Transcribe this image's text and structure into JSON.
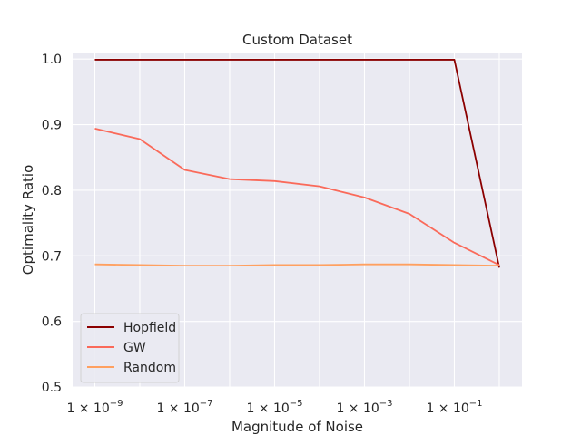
{
  "chart_data": {
    "type": "line",
    "title": "Custom Dataset",
    "xlabel": "Magnitude of Noise",
    "ylabel": "Optimality Ratio",
    "x_scale": "log",
    "x": [
      1e-09,
      1e-08,
      1e-07,
      1e-06,
      1e-05,
      0.0001,
      0.001,
      0.01,
      0.1,
      1
    ],
    "xlim": [
      3.2e-10,
      3.2
    ],
    "ylim": [
      0.5,
      1.01
    ],
    "x_ticks": [
      {
        "value": 1e-09,
        "base": "1 × 10",
        "exp": "−9"
      },
      {
        "value": 1e-07,
        "base": "1 × 10",
        "exp": "−7"
      },
      {
        "value": 1e-05,
        "base": "1 × 10",
        "exp": "−5"
      },
      {
        "value": 0.001,
        "base": "1 × 10",
        "exp": "−3"
      },
      {
        "value": 0.1,
        "base": "1 × 10",
        "exp": "−1"
      }
    ],
    "y_ticks": [
      "0.5",
      "0.6",
      "0.7",
      "0.8",
      "0.9",
      "1.0"
    ],
    "grid": true,
    "legend_position": "bottom-left",
    "series": [
      {
        "name": "Hopfield",
        "color": "#8b0000",
        "values": [
          0.999,
          0.999,
          0.999,
          0.999,
          0.999,
          0.999,
          0.999,
          0.999,
          0.999,
          0.682
        ]
      },
      {
        "name": "GW",
        "color": "#fa6a5a",
        "values": [
          0.894,
          0.878,
          0.831,
          0.817,
          0.814,
          0.806,
          0.789,
          0.764,
          0.72,
          0.686
        ]
      },
      {
        "name": "Random",
        "color": "#ffa060",
        "values": [
          0.687,
          0.686,
          0.685,
          0.685,
          0.686,
          0.686,
          0.687,
          0.687,
          0.686,
          0.685
        ]
      }
    ]
  },
  "colors": {
    "plot_background": "#eaeaf2",
    "grid": "#ffffff",
    "text": "#262626"
  }
}
